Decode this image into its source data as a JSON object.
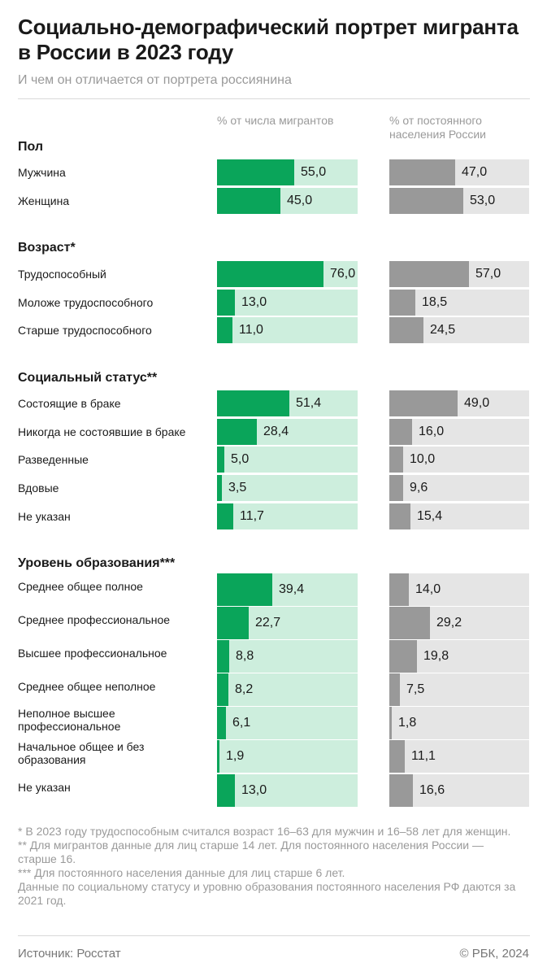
{
  "header": {
    "title": "Социально-демографический портрет мигранта в России в 2023 году",
    "subtitle": "И чем он отличается от портрета россиянина"
  },
  "columns": {
    "migrants": "% от числа мигрантов",
    "population": "% от постоянного населения России"
  },
  "colors": {
    "migrants_bar": "#0aa55a",
    "migrants_track": "#cdeedd",
    "population_bar": "#999999",
    "population_track": "#e5e5e5"
  },
  "chart_data": {
    "type": "bar",
    "orientation": "horizontal",
    "scale_max": 100,
    "series": [
      {
        "name": "% от числа мигрантов"
      },
      {
        "name": "% от постоянного населения России"
      }
    ],
    "groups": [
      {
        "name": "Пол",
        "rows": [
          {
            "label": "Мужчина",
            "migrants": 55.0,
            "population": 47.0,
            "migrants_label": "55,0",
            "population_label": "47,0"
          },
          {
            "label": "Женщина",
            "migrants": 45.0,
            "population": 53.0,
            "migrants_label": "45,0",
            "population_label": "53,0"
          }
        ]
      },
      {
        "name": "Возраст*",
        "rows": [
          {
            "label": "Трудоспособный",
            "migrants": 76.0,
            "population": 57.0,
            "migrants_label": "76,0",
            "population_label": "57,0"
          },
          {
            "label": "Моложе трудоспособного",
            "migrants": 13.0,
            "population": 18.5,
            "migrants_label": "13,0",
            "population_label": "18,5"
          },
          {
            "label": "Старше трудоспособного",
            "migrants": 11.0,
            "population": 24.5,
            "migrants_label": "11,0",
            "population_label": "24,5"
          }
        ]
      },
      {
        "name": "Социальный статус**",
        "rows": [
          {
            "label": "Состоящие в браке",
            "migrants": 51.4,
            "population": 49.0,
            "migrants_label": "51,4",
            "population_label": "49,0"
          },
          {
            "label": "Никогда не состоявшие в браке",
            "migrants": 28.4,
            "population": 16.0,
            "migrants_label": "28,4",
            "population_label": "16,0"
          },
          {
            "label": "Разведенные",
            "migrants": 5.0,
            "population": 10.0,
            "migrants_label": "5,0",
            "population_label": "10,0"
          },
          {
            "label": "Вдовые",
            "migrants": 3.5,
            "population": 9.6,
            "migrants_label": "3,5",
            "population_label": "9,6"
          },
          {
            "label": "Не указан",
            "migrants": 11.7,
            "population": 15.4,
            "migrants_label": "11,7",
            "population_label": "15,4"
          }
        ]
      },
      {
        "name": "Уровень образования***",
        "rows": [
          {
            "label": "Среднее общее полное",
            "migrants": 39.4,
            "population": 14.0,
            "migrants_label": "39,4",
            "population_label": "14,0"
          },
          {
            "label": "Среднее профессиональное",
            "migrants": 22.7,
            "population": 29.2,
            "migrants_label": "22,7",
            "population_label": "29,2"
          },
          {
            "label": "Высшее профессиональное",
            "migrants": 8.8,
            "population": 19.8,
            "migrants_label": "8,8",
            "population_label": "19,8"
          },
          {
            "label": "Среднее общее неполное",
            "migrants": 8.2,
            "population": 7.5,
            "migrants_label": "8,2",
            "population_label": "7,5"
          },
          {
            "label": "Неполное высшее профессиональное",
            "migrants": 6.1,
            "population": 1.8,
            "migrants_label": "6,1",
            "population_label": "1,8"
          },
          {
            "label": "Начальное общее и без образования",
            "migrants": 1.9,
            "population": 11.1,
            "migrants_label": "1,9",
            "population_label": "11,1"
          },
          {
            "label": "Не указан",
            "migrants": 13.0,
            "population": 16.6,
            "migrants_label": "13,0",
            "population_label": "16,6"
          }
        ]
      }
    ]
  },
  "footnotes": [
    "* В 2023 году трудоспособным считался возраст 16–63 для мужчин и 16–58 лет для женщин.",
    "** Для мигрантов данные для лиц старше 14 лет. Для постоянного населения России — старше 16.",
    "*** Для постоянного населения данные для лиц старше 6 лет.",
    "Данные по социальному статусу и уровню образования постоянного населения РФ даются за 2021 год."
  ],
  "footer": {
    "source": "Источник: Росстат",
    "copyright": "© РБК, 2024"
  }
}
